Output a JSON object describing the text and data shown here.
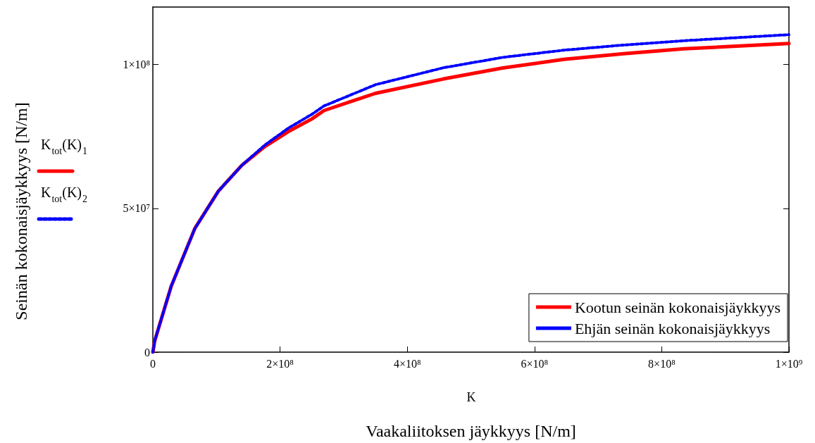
{
  "chart_data": {
    "type": "line",
    "xlabel": "Vaakaliitoksen jäykkyys [N/m]",
    "annotations": [
      "K",
      "K$_{tot}$(K)$_{1}$",
      "K$_{tot}$(K)$_{2}$",
      "Seinän kokonaisjäykkyys [N/m]"
    ],
    "x": [
      0,
      3000000,
      29000000,
      66000000,
      103000000,
      140000000,
      176000000,
      213000000,
      250000000,
      269000000,
      350000000,
      457000000,
      550000000,
      646000000,
      740000000,
      835000000,
      1000000000
    ],
    "series": [
      {
        "name": "Kootun seinän kokonaisjäykkyys",
        "color": "#ff0000",
        "line_style": "solid",
        "values": [
          0,
          4000000,
          23000000,
          43000000,
          56000000,
          65000000,
          71500000,
          76700000,
          81100000,
          84000000,
          90000000,
          95000000,
          98800000,
          101800000,
          103800000,
          105500000,
          107300000
        ]
      },
      {
        "name": "Ehjän seinän kokonaisjäykkyys",
        "color": "#0000ff",
        "line_style": "dotted",
        "values": [
          0,
          4000000,
          23000000,
          43000000,
          56000000,
          65000000,
          72000000,
          77900000,
          82700000,
          85600000,
          93000000,
          98900000,
          102500000,
          105000000,
          106800000,
          108300000,
          110400000
        ]
      }
    ],
    "xlim": [
      0,
      1000000000
    ],
    "xticks": [
      0,
      {
        "value": 200000000,
        "label": "2×10⁸"
      },
      {
        "value": 400000000,
        "label": "4×10⁸"
      },
      {
        "value": 600000000,
        "label": "6×10⁸"
      },
      {
        "value": 800000000,
        "label": "8×10⁸"
      },
      {
        "value": 1000000000,
        "label": "1×10⁹"
      }
    ],
    "ylim": [
      0,
      120000000
    ],
    "yticks": [
      0,
      {
        "value": 50000000,
        "label": "5×10⁷"
      },
      {
        "value": 100000000,
        "label": "1×10⁸"
      }
    ],
    "grid": false,
    "legend": "bottom right",
    "marker": "none"
  }
}
